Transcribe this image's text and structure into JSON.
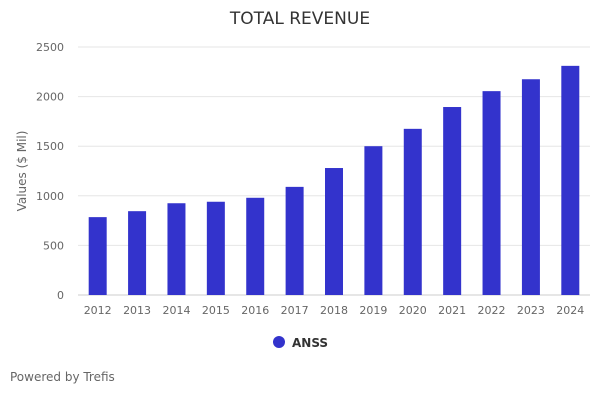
{
  "footer": {
    "text": "Powered by Trefis"
  },
  "chart_data": {
    "type": "bar",
    "title": "TOTAL REVENUE",
    "xlabel": "",
    "ylabel": "Values ($ Mil)",
    "categories": [
      "2012",
      "2013",
      "2014",
      "2015",
      "2016",
      "2017",
      "2018",
      "2019",
      "2020",
      "2021",
      "2022",
      "2023",
      "2024"
    ],
    "series": [
      {
        "name": "ANSS",
        "color": "#3333cc",
        "values": [
          785,
          845,
          925,
          940,
          980,
          1090,
          1280,
          1500,
          1675,
          1895,
          2055,
          2175,
          2310
        ]
      }
    ],
    "ylim": [
      0,
      2500
    ],
    "yticks": [
      0,
      500,
      1000,
      1500,
      2000,
      2500
    ],
    "grid": true,
    "legend": "bottom-center"
  }
}
